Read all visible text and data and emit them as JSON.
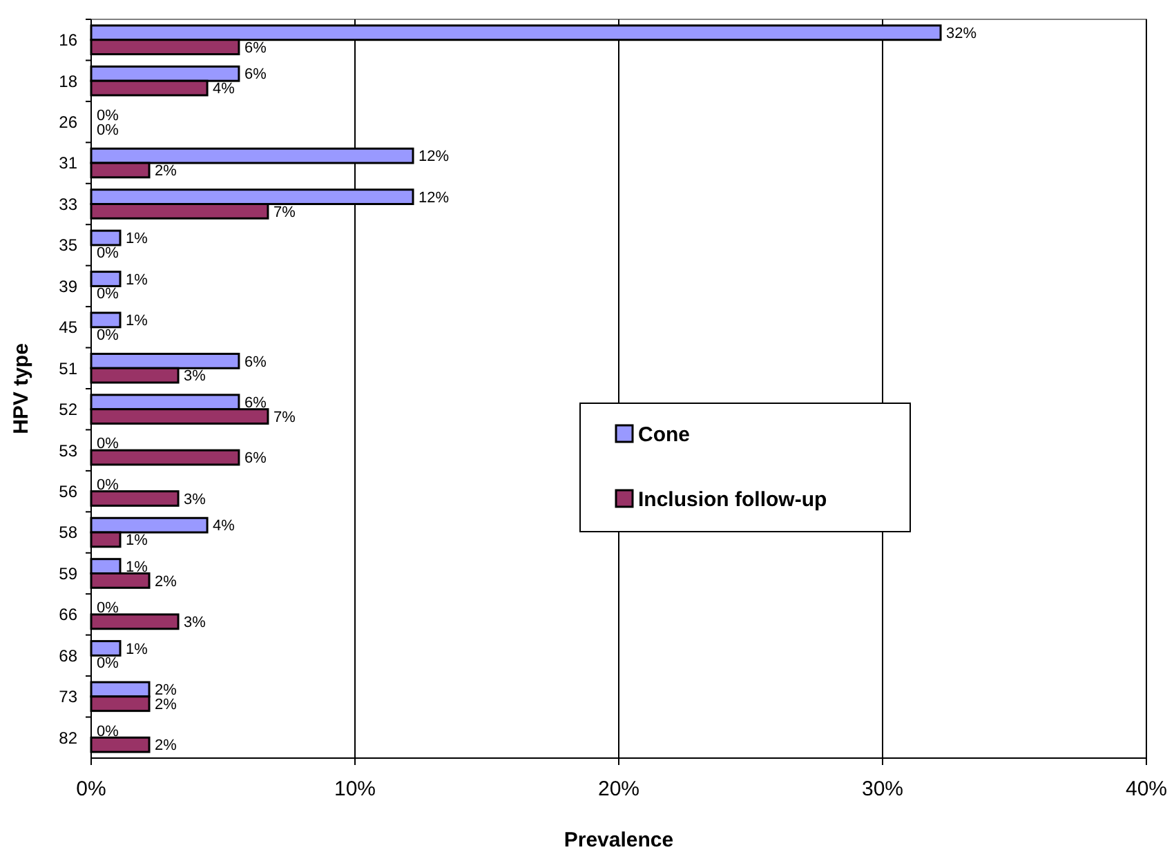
{
  "chart_data": {
    "type": "bar",
    "orientation": "horizontal",
    "xlabel": "Prevalence",
    "ylabel": "HPV type",
    "categories": [
      "16",
      "18",
      "26",
      "31",
      "33",
      "35",
      "39",
      "45",
      "51",
      "52",
      "53",
      "56",
      "58",
      "59",
      "66",
      "68",
      "73",
      "82"
    ],
    "series": [
      {
        "name": "Cone",
        "color": "#9999ff",
        "values": [
          32.2,
          5.6,
          0,
          12.2,
          12.2,
          1.1,
          1.1,
          1.1,
          5.6,
          5.6,
          0,
          0,
          4.4,
          1.1,
          0,
          1.1,
          2.2,
          0
        ],
        "value_labels": [
          "32%",
          "6%",
          "0%",
          "12%",
          "12%",
          "1%",
          "1%",
          "1%",
          "6%",
          "6%",
          "0%",
          "0%",
          "4%",
          "1%",
          "0%",
          "1%",
          "2%",
          "0%"
        ]
      },
      {
        "name": "Inclusion follow-up",
        "color": "#993366",
        "values": [
          5.6,
          4.4,
          0,
          2.2,
          6.7,
          0,
          0,
          0,
          3.3,
          6.7,
          5.6,
          3.3,
          1.1,
          2.2,
          3.3,
          0,
          2.2,
          2.2
        ],
        "value_labels": [
          "6%",
          "4%",
          "0%",
          "2%",
          "7%",
          "0%",
          "0%",
          "0%",
          "3%",
          "7%",
          "6%",
          "3%",
          "1%",
          "2%",
          "3%",
          "0%",
          "2%",
          "2%"
        ]
      }
    ],
    "xlim": [
      0,
      40
    ],
    "xticks": [
      {
        "value": 0,
        "label": "0%"
      },
      {
        "value": 10,
        "label": "10%"
      },
      {
        "value": 20,
        "label": "20%"
      },
      {
        "value": 30,
        "label": "30%"
      },
      {
        "value": 40,
        "label": "40%"
      }
    ],
    "grid": "x",
    "legend": "right"
  }
}
